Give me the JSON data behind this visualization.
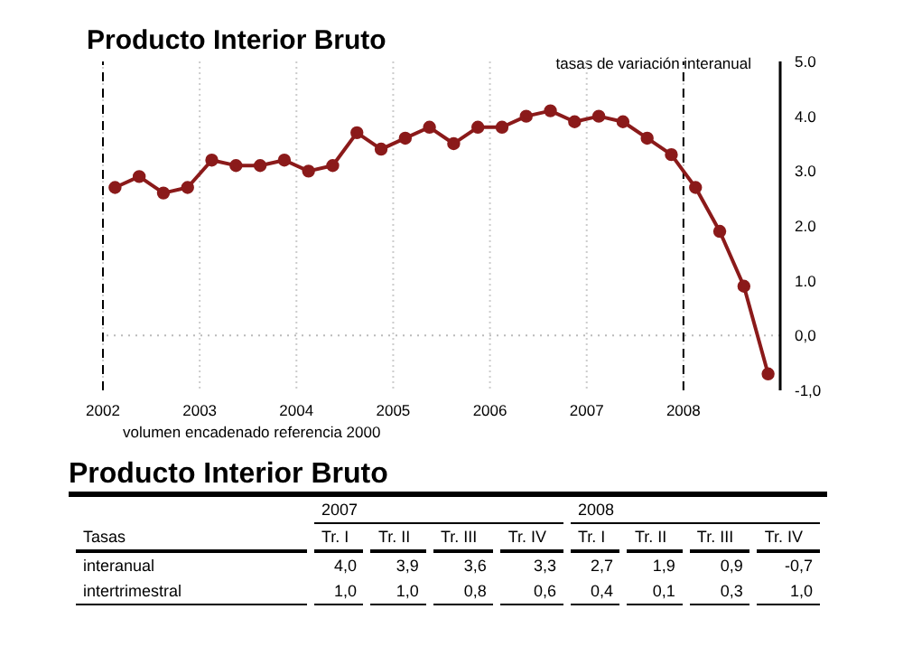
{
  "chart_data": [
    {
      "type": "line",
      "title": "Producto Interior Bruto",
      "ylabel": "tasas de variación interanual",
      "annotations": [
        "volumen encadenado referencia 2000"
      ],
      "x": [
        2002.125,
        2002.375,
        2002.625,
        2002.875,
        2003.125,
        2003.375,
        2003.625,
        2003.875,
        2004.125,
        2004.375,
        2004.625,
        2004.875,
        2005.125,
        2005.375,
        2005.625,
        2005.875,
        2006.125,
        2006.375,
        2006.625,
        2006.875,
        2007.125,
        2007.375,
        2007.625,
        2007.875,
        2008.125,
        2008.375,
        2008.625,
        2008.875
      ],
      "series": [
        {
          "color": "#8b1a1a",
          "values": [
            2.7,
            2.9,
            2.6,
            2.7,
            3.2,
            3.1,
            3.1,
            3.2,
            3.0,
            3.1,
            3.7,
            3.4,
            3.6,
            3.8,
            3.5,
            3.8,
            3.8,
            4.0,
            4.1,
            3.9,
            4.0,
            3.9,
            3.6,
            3.3,
            2.7,
            1.9,
            0.9,
            -0.7
          ]
        }
      ],
      "xlim": [
        2002,
        2009
      ],
      "xticks": [
        2002,
        2003,
        2004,
        2005,
        2006,
        2007,
        2008
      ],
      "ylim": [
        -1,
        5
      ],
      "yticks": [
        {
          "value": -1,
          "label": "-1,0"
        },
        {
          "value": 0,
          "label": "0,0"
        },
        {
          "value": 1,
          "label": "1.0"
        },
        {
          "value": 2,
          "label": "2.0"
        },
        {
          "value": 3,
          "label": "3.0"
        },
        {
          "value": 4,
          "label": "4.0"
        },
        {
          "value": 5,
          "label": "5.0"
        }
      ],
      "grid": "x",
      "marker": "circle",
      "line_style": "solid",
      "legend": false,
      "ref_lines": [
        {
          "axis": "x",
          "value": 2002,
          "line_style": "dashed",
          "color": "#000000"
        },
        {
          "axis": "x",
          "value": 2008,
          "line_style": "dashed",
          "color": "#000000"
        },
        {
          "axis": "y",
          "value": 0,
          "line_style": "dotted",
          "color": "#bbbbbb"
        }
      ]
    },
    {
      "type": "other",
      "title": "Producto Interior Bruto",
      "legend_title": "Tasas",
      "annotations": [
        "2007",
        "2008"
      ],
      "categories": [
        "Tr. I",
        "Tr. II",
        "Tr. III",
        "Tr. IV",
        "Tr. I",
        "Tr. II",
        "Tr. III",
        "Tr. IV"
      ],
      "series": [
        {
          "name": "interanual",
          "values": [
            4.0,
            3.9,
            3.6,
            3.3,
            2.7,
            1.9,
            0.9,
            -0.7
          ],
          "value_labels": [
            "4,0",
            "3,9",
            "3,6",
            "3,3",
            "2,7",
            "1,9",
            "0,9",
            "-0,7"
          ]
        },
        {
          "name": "intertrimestral",
          "values": [
            1.0,
            1.0,
            0.8,
            0.6,
            0.4,
            0.1,
            0.3,
            1.0
          ],
          "value_labels": [
            "1,0",
            "1,0",
            "0,8",
            "0,6",
            "0,4",
            "0,1",
            "0,3",
            "1,0"
          ]
        }
      ]
    }
  ]
}
